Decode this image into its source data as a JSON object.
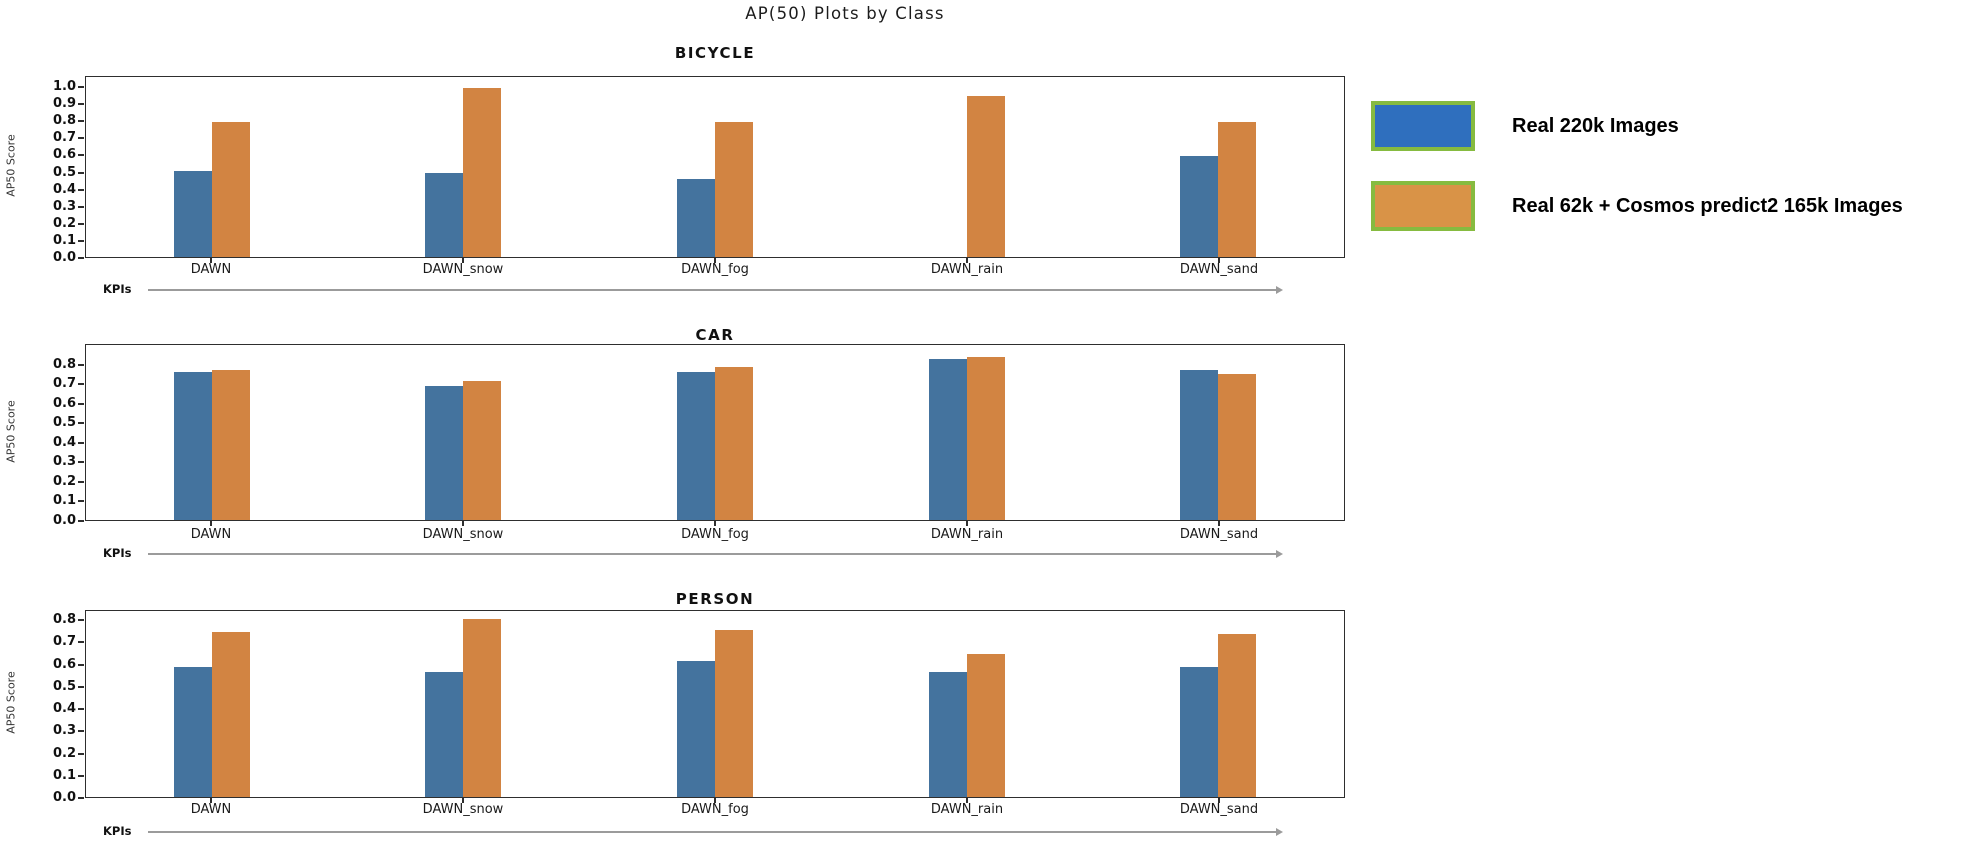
{
  "page_title": "AP(50) Plots by Class",
  "colors": {
    "series1": "#44739E",
    "series2": "#D28442",
    "legend_blue": "#2F6FBE",
    "legend_orange": "#D99347",
    "legend_border": "#86BB40",
    "axis": "#2e2e2e",
    "arrow": "#9b9b9b"
  },
  "legend": {
    "items": [
      {
        "label": "Real 220k Images",
        "color": "#2F6FBE"
      },
      {
        "label": "Real 62k + Cosmos predict2 165k Images",
        "color": "#D99347"
      }
    ],
    "border_color": "#86BB40"
  },
  "chart_data": [
    {
      "type": "bar",
      "title": "BICYCLE",
      "categories": [
        "DAWN",
        "DAWN_snow",
        "DAWN_fog",
        "DAWN_rain",
        "DAWN_sand"
      ],
      "series": [
        {
          "name": "Real 220k Images",
          "values": [
            0.51,
            0.5,
            0.46,
            0.0,
            0.6
          ]
        },
        {
          "name": "Real 62k + Cosmos predict2 165k Images",
          "values": [
            0.8,
            1.0,
            0.8,
            0.95,
            0.8
          ]
        }
      ],
      "xlabel": "KPIs",
      "ylabel": "AP50 Score",
      "ylim": [
        0,
        1.065
      ],
      "yticks": [
        0.0,
        0.1,
        0.2,
        0.3,
        0.4,
        0.5,
        0.6,
        0.7,
        0.8,
        0.9,
        1.0
      ],
      "grid": false,
      "legend_position": "outside-right"
    },
    {
      "type": "bar",
      "title": "CAR",
      "categories": [
        "DAWN",
        "DAWN_snow",
        "DAWN_fog",
        "DAWN_rain",
        "DAWN_sand"
      ],
      "series": [
        {
          "name": "Real 220k Images",
          "values": [
            0.765,
            0.695,
            0.765,
            0.835,
            0.775
          ]
        },
        {
          "name": "Real 62k + Cosmos predict2 165k Images",
          "values": [
            0.775,
            0.72,
            0.79,
            0.845,
            0.755
          ]
        }
      ],
      "xlabel": "KPIs",
      "ylabel": "AP50 Score",
      "ylim": [
        0,
        0.905
      ],
      "yticks": [
        0.0,
        0.1,
        0.2,
        0.3,
        0.4,
        0.5,
        0.6,
        0.7,
        0.8
      ],
      "grid": false,
      "legend_position": "outside-right"
    },
    {
      "type": "bar",
      "title": "PERSON",
      "categories": [
        "DAWN",
        "DAWN_snow",
        "DAWN_fog",
        "DAWN_rain",
        "DAWN_sand"
      ],
      "series": [
        {
          "name": "Real 220k Images",
          "values": [
            0.59,
            0.57,
            0.62,
            0.57,
            0.59
          ]
        },
        {
          "name": "Real 62k + Cosmos predict2 165k Images",
          "values": [
            0.75,
            0.81,
            0.76,
            0.65,
            0.74
          ]
        }
      ],
      "xlabel": "KPIs",
      "ylabel": "AP50 Score",
      "ylim": [
        0,
        0.845
      ],
      "yticks": [
        0.0,
        0.1,
        0.2,
        0.3,
        0.4,
        0.5,
        0.6,
        0.7,
        0.8
      ],
      "grid": false,
      "legend_position": "outside-right"
    }
  ]
}
